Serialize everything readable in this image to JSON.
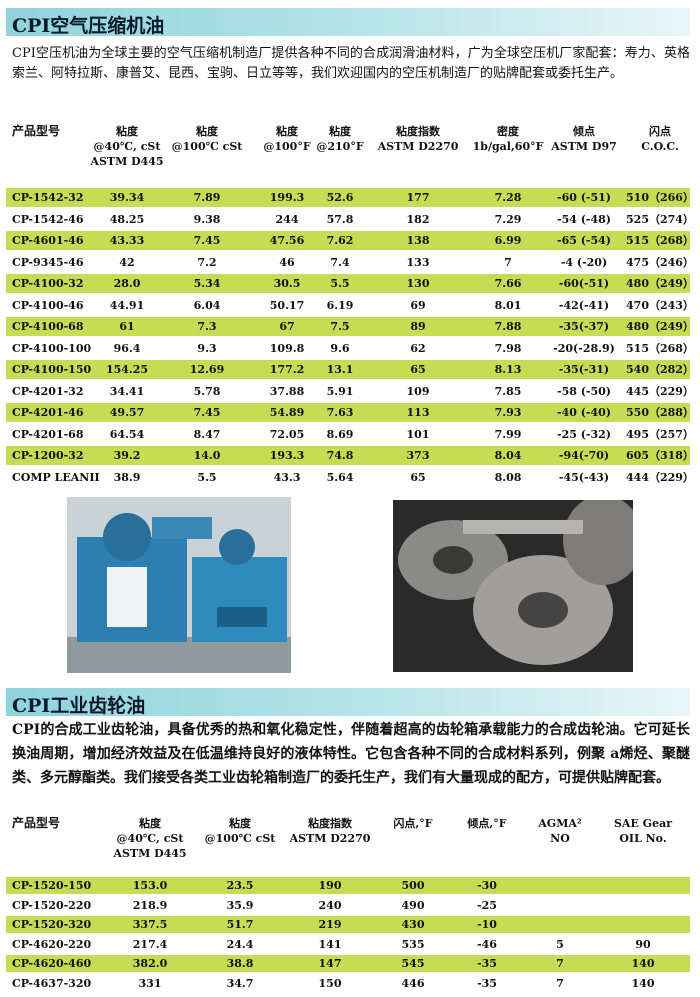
{
  "section1": {
    "title": "CPI空气压缩机油",
    "paragraph": " CPI空压机油为全球主要的空气压缩机制造厂提供各种不同的合成润滑油材料，广为全球空压机厂家配套：寿力、英格索兰、阿特拉斯、康普艾、昆西、宝驹、日立等等，我们欢迎国内的空压机制造厂的贴牌配套或委托生产。",
    "table": {
      "headers": [
        [
          "产品型号"
        ],
        [
          "粘度",
          "@40℃, cSt",
          "ASTM D445"
        ],
        [
          "粘度",
          "@100℃ cSt"
        ],
        [
          "粘度",
          "@100°F"
        ],
        [
          "粘度",
          "@210°F"
        ],
        [
          "粘度指数",
          "ASTM D2270"
        ],
        [
          "密度",
          "1b/gal,60°F"
        ],
        [
          "倾点",
          "ASTM D97"
        ],
        [
          "闪点",
          "C.O.C."
        ]
      ],
      "rows": [
        [
          "CP-1542-32",
          "39.34",
          "7.89",
          "199.3",
          "52.6",
          "177",
          "7.28",
          "-60 (-51)",
          "510（266）"
        ],
        [
          "CP-1542-46",
          "48.25",
          "9.38",
          "244",
          "57.8",
          "182",
          "7.29",
          "-54 (-48)",
          "525（274）"
        ],
        [
          "CP-4601-46",
          "43.33",
          "7.45",
          "47.56",
          "7.62",
          "138",
          "6.99",
          "-65 (-54)",
          "515（268）"
        ],
        [
          "CP-9345-46",
          "42",
          "7.2",
          "46",
          "7.4",
          "133",
          "7",
          "-4 (-20)",
          "475（246）"
        ],
        [
          "CP-4100-32",
          "28.0",
          "5.34",
          "30.5",
          "5.5",
          "130",
          "7.66",
          "-60(-51)",
          "480（249）"
        ],
        [
          "CP-4100-46",
          "44.91",
          "6.04",
          "50.17",
          "6.19",
          "69",
          "8.01",
          "-42(-41)",
          "470（243）"
        ],
        [
          "CP-4100-68",
          "61",
          "7.3",
          "67",
          "7.5",
          "89",
          "7.88",
          "-35(-37)",
          "480（249）"
        ],
        [
          "CP-4100-100",
          "96.4",
          "9.3",
          "109.8",
          "9.6",
          "62",
          "7.98",
          "-20(-28.9)",
          "515（268）"
        ],
        [
          "CP-4100-150",
          "154.25",
          "12.69",
          "177.2",
          "13.1",
          "65",
          "8.13",
          "-35(-31)",
          "540（282）"
        ],
        [
          "CP-4201-32",
          "34.41",
          "5.78",
          "37.88",
          "5.91",
          "109",
          "7.85",
          "-58 (-50)",
          "445（229）"
        ],
        [
          "CP-4201-46",
          "49.57",
          "7.45",
          "54.89",
          "7.63",
          "113",
          "7.93",
          "-40 (-40)",
          "550（288）"
        ],
        [
          "CP-4201-68",
          "64.54",
          "8.47",
          "72.05",
          "8.69",
          "101",
          "7.99",
          "-25 (-32)",
          "495（257）"
        ],
        [
          "CP-1200-32",
          "39.2",
          "14.0",
          "193.3",
          "74.8",
          "373",
          "8.04",
          "-94(-70)",
          "605（318）"
        ],
        [
          "COMP LEANII",
          "38.9",
          "5.5",
          "43.3",
          "5.64",
          "65",
          "8.08",
          "-45(-43)",
          "444（229）"
        ]
      ]
    }
  },
  "section2": {
    "title": "CPI工业齿轮油",
    "paragraph": "CPI的合成工业齿轮油，具备优秀的热和氧化稳定性，伴随着超高的齿轮箱承载能力的合成齿轮油。它可延长换油周期，增加经济效益及在低温维持良好的液体特性。它包含各种不同的合成材料系列，例聚 a烯烃、聚醚类、多元醇酯类。我们接受各类工业齿轮箱制造厂的委托生产，我们有大量现成的配方，可提供贴牌配套。",
    "table": {
      "headers": [
        [
          "产品型号"
        ],
        [
          "粘度",
          "@40℃, cSt",
          "ASTM D445"
        ],
        [
          "粘度",
          "@100℃ cSt"
        ],
        [
          "粘度指数",
          "ASTM D2270"
        ],
        [
          "闪点,°F"
        ],
        [
          "倾点,°F"
        ],
        [
          "AGMA²",
          "NO"
        ],
        [
          "SAE Gear",
          "OIL No."
        ]
      ],
      "rows": [
        [
          "CP-1520-150",
          "153.0",
          "23.5",
          "190",
          "500",
          "-30",
          null,
          null
        ],
        [
          "CP-1520-220",
          "218.9",
          "35.9",
          "240",
          "490",
          "-25",
          null,
          null
        ],
        [
          "CP-1520-320",
          "337.5",
          "51.7",
          "219",
          "430",
          "-10",
          null,
          null
        ],
        [
          "CP-4620-220",
          "217.4",
          "24.4",
          "141",
          "535",
          "-46",
          "5",
          "90"
        ],
        [
          "CP-4620-460",
          "382.0",
          "38.8",
          "147",
          "545",
          "-35",
          "7",
          "140"
        ],
        [
          "CP-4637-320",
          "331",
          "34.7",
          "150",
          "446",
          "-35",
          "7",
          "140"
        ]
      ]
    }
  }
}
